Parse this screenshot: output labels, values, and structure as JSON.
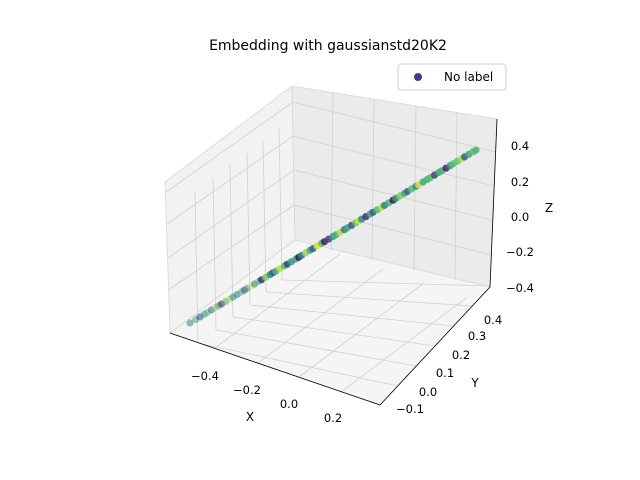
{
  "chart_data": {
    "type": "scatter",
    "projection": "3d",
    "title": "Embedding with gaussianstd20K2",
    "xlabel": "X",
    "ylabel": "Y",
    "zlabel": "Z",
    "grid": true,
    "legend": {
      "location": "upper right",
      "entries": [
        "No label"
      ],
      "marker_color": "#3b3b8c"
    },
    "axes": {
      "x": {
        "ticks": [
          -0.4,
          -0.2,
          0.0,
          0.2
        ],
        "tick_labels": [
          "−0.4",
          "−0.2",
          "0.0",
          "0.2"
        ]
      },
      "y": {
        "ticks": [
          -0.1,
          0.0,
          0.1,
          0.2,
          0.3,
          0.4
        ],
        "tick_labels": [
          "−0.1",
          "0.0",
          "0.1",
          "0.2",
          "0.3",
          "0.4"
        ]
      },
      "z": {
        "ticks": [
          -0.4,
          -0.2,
          0.0,
          0.2,
          0.4
        ],
        "tick_labels": [
          "−0.4",
          "−0.2",
          "0.0",
          "0.2",
          "0.4"
        ]
      }
    },
    "line": {
      "start": {
        "x": -0.5,
        "y": -0.15,
        "z": -0.45
      },
      "end": {
        "x": 0.3,
        "y": 0.45,
        "z": 0.45
      }
    },
    "colormap": "viridis",
    "series": [
      {
        "name": "No label",
        "t_values": [
          0.0,
          0.02,
          0.035,
          0.05,
          0.06,
          0.075,
          0.09,
          0.1,
          0.11,
          0.125,
          0.14,
          0.15,
          0.165,
          0.18,
          0.19,
          0.2,
          0.215,
          0.225,
          0.24,
          0.25,
          0.265,
          0.28,
          0.29,
          0.3,
          0.315,
          0.33,
          0.34,
          0.355,
          0.37,
          0.38,
          0.39,
          0.405,
          0.42,
          0.43,
          0.445,
          0.46,
          0.47,
          0.485,
          0.5,
          0.51,
          0.525,
          0.54,
          0.55,
          0.565,
          0.58,
          0.59,
          0.6,
          0.615,
          0.63,
          0.64,
          0.655,
          0.67,
          0.68,
          0.695,
          0.71,
          0.72,
          0.735,
          0.75,
          0.76,
          0.775,
          0.79,
          0.8,
          0.815,
          0.83,
          0.84,
          0.855,
          0.87,
          0.88,
          0.895,
          0.91,
          0.92,
          0.935,
          0.95,
          0.96,
          0.975,
          0.99,
          1.0
        ],
        "color_values": [
          0.5,
          0.6,
          0.2,
          0.55,
          0.7,
          0.3,
          0.85,
          0.6,
          0.1,
          0.65,
          0.9,
          0.5,
          0.4,
          0.7,
          0.2,
          0.55,
          0.95,
          0.45,
          0.6,
          0.15,
          0.8,
          0.5,
          0.3,
          0.65,
          0.9,
          0.7,
          0.2,
          0.55,
          0.6,
          0.05,
          0.45,
          0.85,
          0.6,
          0.3,
          0.95,
          0.7,
          0.1,
          0.2,
          0.55,
          0.65,
          0.9,
          0.4,
          0.6,
          0.25,
          0.75,
          0.95,
          0.5,
          0.15,
          0.6,
          0.3,
          0.7,
          0.9,
          0.45,
          0.65,
          0.05,
          0.55,
          0.8,
          0.6,
          0.35,
          0.7,
          0.5,
          0.95,
          0.6,
          0.65,
          0.7,
          0.2,
          0.6,
          0.65,
          0.1,
          0.55,
          0.7,
          0.75,
          0.9,
          0.3,
          0.6,
          0.7,
          0.65
        ]
      }
    ]
  }
}
